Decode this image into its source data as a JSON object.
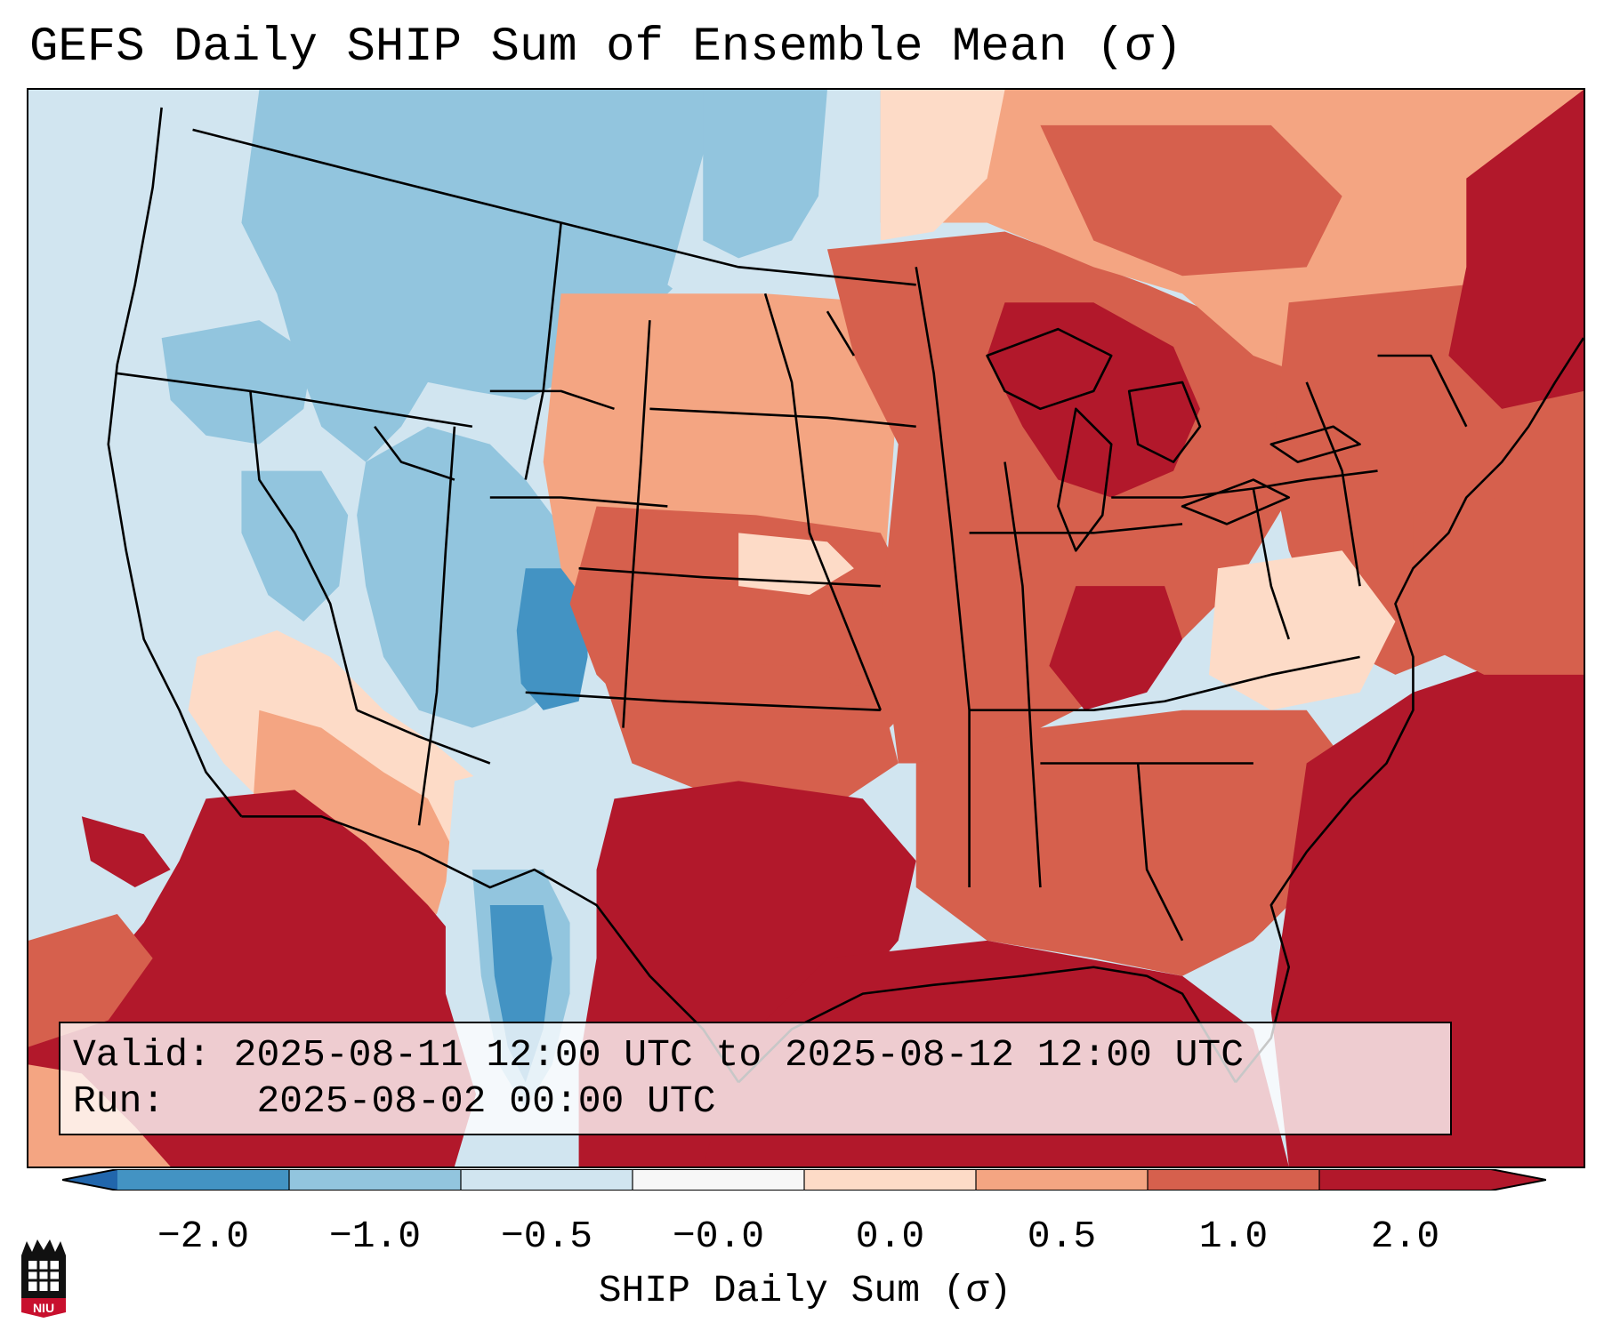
{
  "title": "GEFS Daily SHIP Sum of Ensemble Mean (σ)",
  "info": {
    "valid_key": "Valid:",
    "valid_value": "2025-08-11 12:00 UTC to 2025-08-12 12:00 UTC",
    "run_key": "Run:",
    "run_value": "2025-08-02 00:00 UTC"
  },
  "colorbar": {
    "label": "SHIP Daily Sum (σ)",
    "ticks": [
      "−2.0",
      "−1.0",
      "−0.5",
      "−0.0",
      "0.0",
      "0.5",
      "1.0",
      "2.0"
    ],
    "colors": [
      "#4393c3",
      "#92c5de",
      "#d1e5f0",
      "#f7f7f7",
      "#fddbc7",
      "#f4a582",
      "#d6604d",
      "#b2182b"
    ],
    "under_color": "#2166ac",
    "over_color": "#b2182b"
  },
  "logo": {
    "icon": "niu-logo-icon",
    "text": "NIU"
  }
}
